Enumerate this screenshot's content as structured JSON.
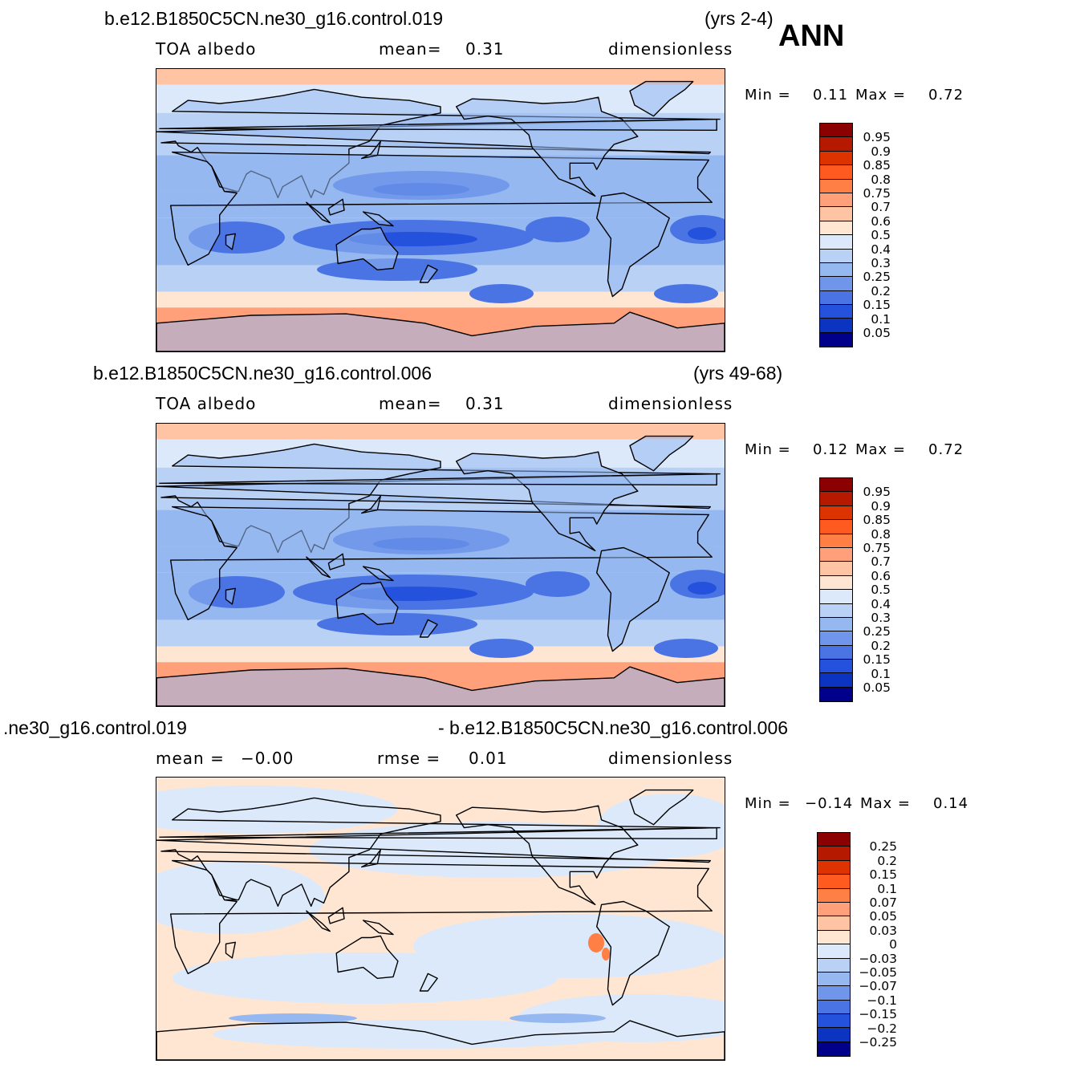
{
  "season": "ANN",
  "panels": [
    {
      "case_name": "b.e12.B1850C5CN.ne30_g16.control.019",
      "years": "(yrs 2-4)",
      "variable": "TOA  albedo",
      "mean_label": "mean=",
      "mean_value": "0.31",
      "units": "dimensionless",
      "min_label": "Min  =",
      "min_value": "0.11",
      "max_label": "Max  =",
      "max_value": "0.72",
      "colorbar": {
        "labels": [
          "0.95",
          "0.9",
          "0.85",
          "0.8",
          "0.75",
          "0.7",
          "0.6",
          "0.5",
          "0.4",
          "0.3",
          "0.25",
          "0.2",
          "0.15",
          "0.1",
          "0.05"
        ],
        "colors": [
          "#8b0000",
          "#b51a00",
          "#dd3300",
          "#ff5a1f",
          "#ff7f45",
          "#ffa07a",
          "#ffc4a3",
          "#ffe6d2",
          "#dbe9fb",
          "#b8d1f5",
          "#95b8f0",
          "#6f96ea",
          "#4a74e4",
          "#2552dc",
          "#0b34c0",
          "#00008b"
        ]
      },
      "map_field": "albedo"
    },
    {
      "case_name": "b.e12.B1850C5CN.ne30_g16.control.006",
      "years": "(yrs 49-68)",
      "variable": "TOA  albedo",
      "mean_label": "mean=",
      "mean_value": "0.31",
      "units": "dimensionless",
      "min_label": "Min  =",
      "min_value": "0.12",
      "max_label": "Max  =",
      "max_value": "0.72",
      "colorbar": {
        "labels": [
          "0.95",
          "0.9",
          "0.85",
          "0.8",
          "0.75",
          "0.7",
          "0.6",
          "0.5",
          "0.4",
          "0.3",
          "0.25",
          "0.2",
          "0.15",
          "0.1",
          "0.05"
        ],
        "colors": [
          "#8b0000",
          "#b51a00",
          "#dd3300",
          "#ff5a1f",
          "#ff7f45",
          "#ffa07a",
          "#ffc4a3",
          "#ffe6d2",
          "#dbe9fb",
          "#b8d1f5",
          "#95b8f0",
          "#6f96ea",
          "#4a74e4",
          "#2552dc",
          "#0b34c0",
          "#00008b"
        ]
      },
      "map_field": "albedo"
    },
    {
      "case_name_left": ".ne30_g16.control.019",
      "case_name_right": "- b.e12.B1850C5CN.ne30_g16.control.006",
      "mean_label": "mean  =",
      "mean_value": "−0.00",
      "rmse_label": "rmse  =",
      "rmse_value": "0.01",
      "units": "dimensionless",
      "min_label": "Min  =",
      "min_value": "−0.14",
      "max_label": "Max  =",
      "max_value": "0.14",
      "colorbar": {
        "labels": [
          "0.25",
          "0.2",
          "0.15",
          "0.1",
          "0.07",
          "0.05",
          "0.03",
          "0",
          "−0.03",
          "−0.05",
          "−0.07",
          "−0.1",
          "−0.15",
          "−0.2",
          "−0.25"
        ],
        "colors": [
          "#8b0000",
          "#b51a00",
          "#dd3300",
          "#ff5a1f",
          "#ff7f45",
          "#ffa07a",
          "#ffc4a3",
          "#ffe6d2",
          "#dbe9fb",
          "#b8d1f5",
          "#95b8f0",
          "#6f96ea",
          "#4a74e4",
          "#2552dc",
          "#0b34c0",
          "#00008b"
        ]
      },
      "map_field": "difference"
    }
  ]
}
